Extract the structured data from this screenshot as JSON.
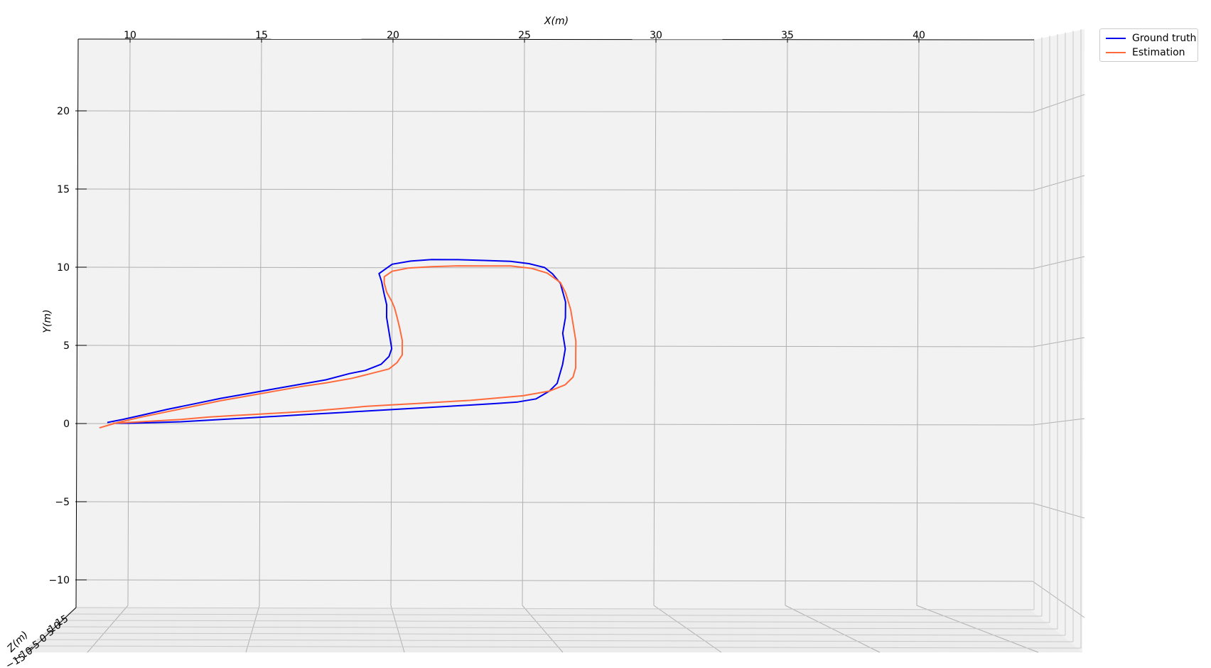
{
  "chart_data": {
    "type": "line",
    "xlabel": "X(m)",
    "ylabel": "Y(m)",
    "zlabel": "Z(m)",
    "xlim": [
      8,
      44
    ],
    "ylim": [
      -11.5,
      24.5
    ],
    "x_ticks": [
      "10",
      "15",
      "20",
      "25",
      "30",
      "35",
      "40"
    ],
    "y_ticks": [
      "20",
      "15",
      "10",
      "5",
      "0",
      "−5",
      "−10"
    ],
    "z_ticks": [
      "15",
      "10",
      "5",
      "0",
      "−5",
      "−10",
      "−15"
    ],
    "grid": true,
    "legend_position": "top-right",
    "series": [
      {
        "name": "Ground truth",
        "color": "#0000ee",
        "points": [
          [
            9.2,
            0.25
          ],
          [
            9.8,
            0.45
          ],
          [
            10.6,
            0.75
          ],
          [
            11.5,
            1.1
          ],
          [
            12.5,
            1.45
          ],
          [
            13.5,
            1.8
          ],
          [
            14.5,
            2.1
          ],
          [
            15.5,
            2.4
          ],
          [
            16.5,
            2.7
          ],
          [
            17.5,
            3.0
          ],
          [
            18.4,
            3.4
          ],
          [
            19.0,
            3.6
          ],
          [
            19.6,
            4.0
          ],
          [
            19.9,
            4.5
          ],
          [
            20.0,
            5.0
          ],
          [
            19.9,
            6.0
          ],
          [
            19.8,
            7.0
          ],
          [
            19.8,
            7.8
          ],
          [
            19.7,
            8.5
          ],
          [
            19.6,
            9.3
          ],
          [
            19.5,
            9.8
          ],
          [
            20.0,
            10.4
          ],
          [
            20.7,
            10.6
          ],
          [
            21.5,
            10.7
          ],
          [
            22.5,
            10.7
          ],
          [
            23.5,
            10.65
          ],
          [
            24.5,
            10.6
          ],
          [
            25.2,
            10.45
          ],
          [
            25.8,
            10.2
          ],
          [
            26.1,
            9.8
          ],
          [
            26.4,
            9.2
          ],
          [
            26.6,
            8.0
          ],
          [
            26.6,
            7.0
          ],
          [
            26.5,
            6.0
          ],
          [
            26.6,
            5.0
          ],
          [
            26.5,
            4.0
          ],
          [
            26.3,
            2.8
          ],
          [
            26.0,
            2.3
          ],
          [
            25.5,
            1.8
          ],
          [
            24.8,
            1.6
          ],
          [
            24.0,
            1.5
          ],
          [
            23.0,
            1.4
          ],
          [
            22.0,
            1.3
          ],
          [
            21.0,
            1.2
          ],
          [
            20.0,
            1.1
          ],
          [
            19.0,
            1.0
          ],
          [
            18.0,
            0.9
          ],
          [
            17.0,
            0.8
          ],
          [
            16.0,
            0.7
          ],
          [
            15.0,
            0.6
          ],
          [
            14.0,
            0.5
          ],
          [
            13.0,
            0.4
          ],
          [
            12.0,
            0.3
          ],
          [
            11.0,
            0.25
          ],
          [
            10.0,
            0.2
          ],
          [
            9.5,
            0.2
          ]
        ]
      },
      {
        "name": "Estimation",
        "color": "#ff6a3d",
        "points": [
          [
            8.9,
            -0.1
          ],
          [
            9.6,
            0.25
          ],
          [
            10.5,
            0.6
          ],
          [
            11.5,
            0.95
          ],
          [
            12.5,
            1.3
          ],
          [
            13.5,
            1.65
          ],
          [
            14.5,
            1.95
          ],
          [
            15.5,
            2.25
          ],
          [
            16.5,
            2.55
          ],
          [
            17.5,
            2.8
          ],
          [
            18.5,
            3.1
          ],
          [
            19.2,
            3.4
          ],
          [
            19.9,
            3.7
          ],
          [
            20.2,
            4.1
          ],
          [
            20.4,
            4.6
          ],
          [
            20.4,
            5.5
          ],
          [
            20.3,
            6.3
          ],
          [
            20.2,
            7.0
          ],
          [
            20.1,
            7.6
          ],
          [
            20.0,
            8.0
          ],
          [
            19.8,
            8.6
          ],
          [
            19.7,
            9.2
          ],
          [
            19.7,
            9.6
          ],
          [
            20.0,
            9.95
          ],
          [
            20.6,
            10.15
          ],
          [
            21.5,
            10.25
          ],
          [
            22.5,
            10.3
          ],
          [
            23.5,
            10.3
          ],
          [
            24.5,
            10.3
          ],
          [
            25.3,
            10.15
          ],
          [
            25.9,
            9.85
          ],
          [
            26.4,
            9.25
          ],
          [
            26.6,
            8.6
          ],
          [
            26.8,
            7.5
          ],
          [
            26.9,
            6.5
          ],
          [
            27.0,
            5.5
          ],
          [
            27.0,
            4.5
          ],
          [
            27.0,
            3.8
          ],
          [
            26.9,
            3.2
          ],
          [
            26.6,
            2.7
          ],
          [
            26.0,
            2.3
          ],
          [
            25.0,
            2.0
          ],
          [
            24.0,
            1.85
          ],
          [
            23.0,
            1.7
          ],
          [
            22.0,
            1.6
          ],
          [
            21.0,
            1.5
          ],
          [
            20.0,
            1.4
          ],
          [
            19.0,
            1.3
          ],
          [
            18.0,
            1.15
          ],
          [
            17.0,
            1.0
          ],
          [
            16.0,
            0.9
          ],
          [
            15.0,
            0.8
          ],
          [
            14.0,
            0.7
          ],
          [
            13.0,
            0.6
          ],
          [
            12.0,
            0.45
          ],
          [
            11.0,
            0.35
          ],
          [
            10.0,
            0.25
          ],
          [
            9.4,
            0.2
          ]
        ]
      }
    ]
  }
}
